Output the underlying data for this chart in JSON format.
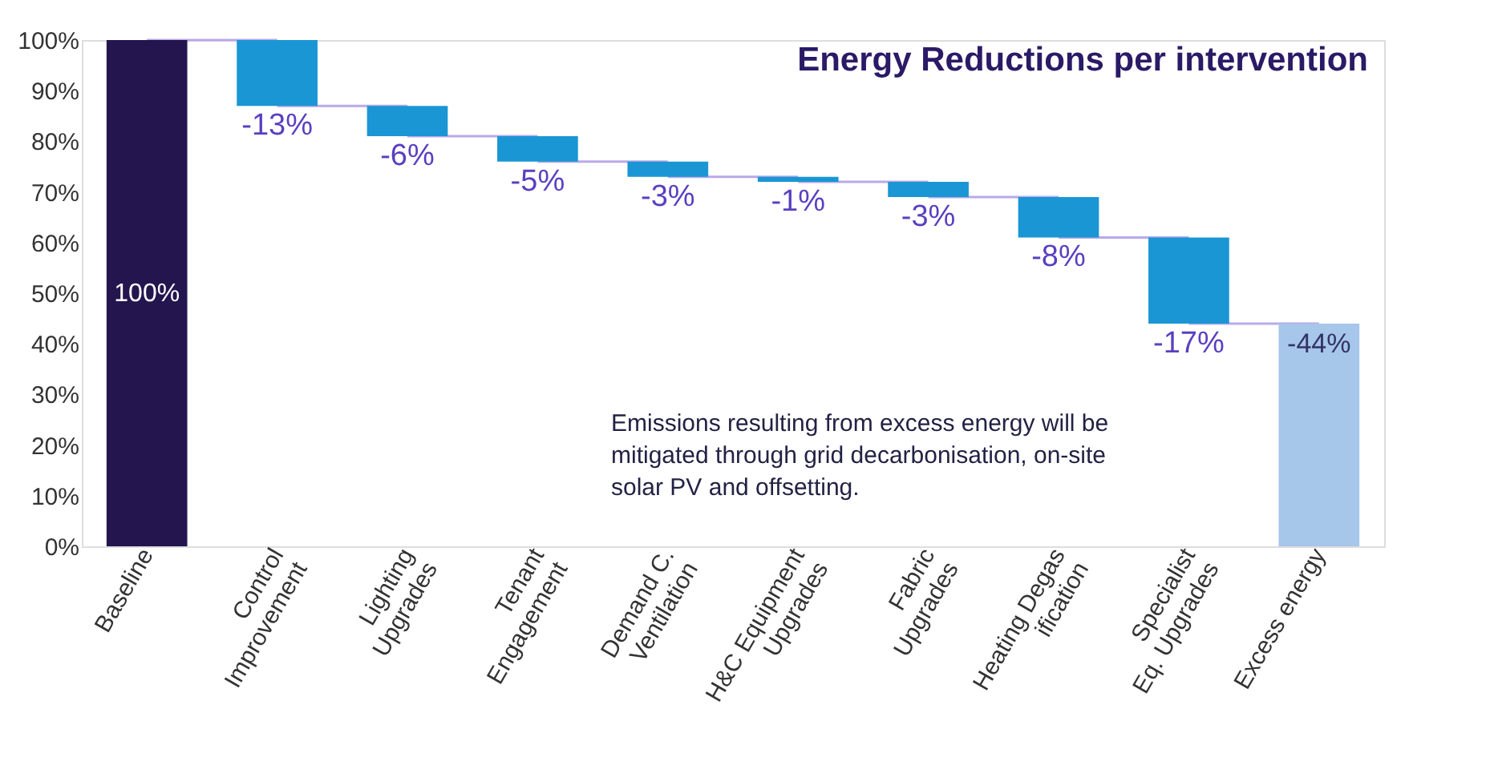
{
  "chart_data": {
    "type": "bar",
    "title": "Energy Reductions per intervention",
    "categories": [
      "Baseline",
      "Control Improvement",
      "Lighting Upgrades",
      "Tenant Engagement",
      "Demand C. Ventilation",
      "H&C Equipment Upgrades",
      "Fabric Upgrades",
      "Heating Degasification",
      "Specialist Eq. Upgrades",
      "Excess energy"
    ],
    "values": [
      100,
      -13,
      -6,
      -5,
      -3,
      -1,
      -3,
      -8,
      -17,
      -44
    ],
    "base": [
      0,
      100,
      87,
      81,
      76,
      73,
      72,
      69,
      61,
      44
    ],
    "colors": [
      "#24154f",
      "#1a96d4",
      "#1a96d4",
      "#1a96d4",
      "#1a96d4",
      "#1a96d4",
      "#1a96d4",
      "#1a96d4",
      "#1a96d4",
      "#a6c6ea"
    ],
    "value_labels": [
      "100%",
      "-13%",
      "-6%",
      "-5%",
      "-3%",
      "-1%",
      "-3%",
      "-8%",
      "-17%",
      "-44%"
    ],
    "ylim": [
      0,
      100
    ],
    "yticks": [
      {
        "value": 0,
        "label": "0%"
      },
      {
        "value": 10,
        "label": "10%"
      },
      {
        "value": 20,
        "label": "20%"
      },
      {
        "value": 30,
        "label": "30%"
      },
      {
        "value": 40,
        "label": "40%"
      },
      {
        "value": 50,
        "label": "50%"
      },
      {
        "value": 60,
        "label": "60%"
      },
      {
        "value": 70,
        "label": "70%"
      },
      {
        "value": 80,
        "label": "80%"
      },
      {
        "value": 90,
        "label": "90%"
      },
      {
        "value": 100,
        "label": "100%"
      }
    ],
    "grid": false,
    "annotations": [
      "Emissions resulting from excess energy will be mitigated through grid decarbonisation, on-site solar PV and offsetting."
    ]
  }
}
